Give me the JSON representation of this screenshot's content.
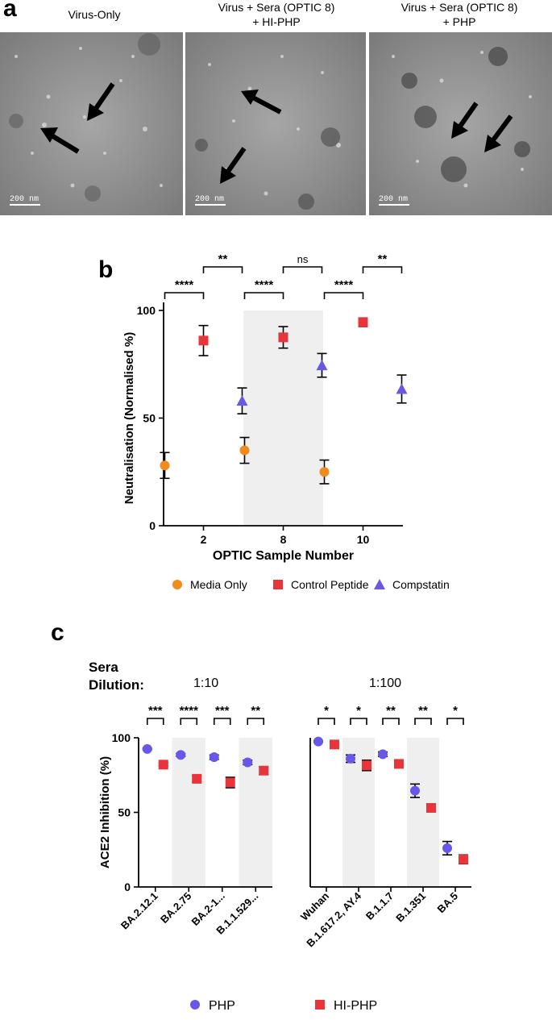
{
  "panel_a": {
    "letter": "a",
    "images": [
      {
        "title": "Virus-Only",
        "scale_label": "200 nm"
      },
      {
        "title": "Virus + Sera (OPTIC 8)\n+ HI-PHP",
        "scale_label": "200 nm"
      },
      {
        "title": "Virus + Sera (OPTIC 8)\n+ PHP",
        "scale_label": "200 nm"
      }
    ]
  },
  "panel_b": {
    "letter": "b"
  },
  "panel_c": {
    "letter": "c",
    "sera_label": "Sera\nDilution:",
    "group_labels": [
      "1:10",
      "1:100"
    ]
  },
  "chart_data": [
    {
      "type": "scatter",
      "id": "b",
      "title": "",
      "xlabel": "OPTIC Sample Number",
      "ylabel": "Neutralisation (Normalised %)",
      "ylim": [
        0,
        100
      ],
      "yticks": [
        0,
        50,
        100
      ],
      "categories": [
        "2",
        "8",
        "10"
      ],
      "shaded_categories": [
        "8"
      ],
      "series": [
        {
          "name": "Media Only",
          "color": "#f28a1c",
          "marker": "circle",
          "values": [
            28,
            35,
            25
          ],
          "errors": [
            6,
            6,
            5.5
          ]
        },
        {
          "name": "Control Peptide",
          "color": "#e8353b",
          "marker": "square",
          "values": [
            86,
            87.5,
            94.5
          ],
          "errors": [
            7,
            5,
            2
          ]
        },
        {
          "name": "Compstatin",
          "color": "#6957ea",
          "marker": "triangle",
          "values": [
            58,
            74.5,
            63.5
          ],
          "errors": [
            6,
            5.5,
            6.5
          ]
        }
      ],
      "significance": [
        {
          "category": "2",
          "pairs": [
            [
              "Media Only",
              "Control Peptide",
              "****"
            ],
            [
              "Control Peptide",
              "Compstatin",
              "**"
            ],
            [
              "Media Only",
              "Compstatin",
              "**"
            ]
          ]
        },
        {
          "category": "8",
          "pairs": [
            [
              "Media Only",
              "Control Peptide",
              "****"
            ],
            [
              "Control Peptide",
              "Compstatin",
              "ns"
            ],
            [
              "Media Only",
              "Compstatin",
              "****"
            ]
          ]
        },
        {
          "category": "10",
          "pairs": [
            [
              "Media Only",
              "Control Peptide",
              "****"
            ],
            [
              "Control Peptide",
              "Compstatin",
              "**"
            ],
            [
              "Media Only",
              "Compstatin",
              "****"
            ]
          ]
        }
      ],
      "legend_position": "bottom"
    },
    {
      "type": "scatter",
      "id": "c",
      "title": "",
      "xlabel": "",
      "ylabel": "ACE2 Inhibition (%)",
      "ylim": [
        0,
        100
      ],
      "yticks": [
        0,
        50,
        100
      ],
      "groups": [
        {
          "label": "1:10",
          "categories": [
            "BA.2.12.1",
            "BA.2.75",
            "BA.2-1...",
            "B.1.1.529..."
          ],
          "shaded": [
            false,
            true,
            false,
            true
          ],
          "significance": [
            "***",
            "****",
            "***",
            "**"
          ],
          "series": [
            {
              "name": "PHP",
              "values": [
                92.5,
                88.5,
                87,
                83.5
              ],
              "errors": [
                0.5,
                1,
                1.5,
                1.5
              ]
            },
            {
              "name": "HI-PHP",
              "values": [
                82,
                72.5,
                70,
                78
              ],
              "errors": [
                1,
                2,
                3.5,
                2.5
              ]
            }
          ]
        },
        {
          "label": "1:100",
          "categories": [
            "Wuhan",
            "B.1.617.2, AY.4",
            "B.1.1.7",
            "B.1.351",
            "BA.5"
          ],
          "shaded": [
            false,
            true,
            false,
            true,
            false
          ],
          "significance": [
            "*",
            "*",
            "**",
            "**",
            "*"
          ],
          "series": [
            {
              "name": "PHP",
              "values": [
                97.5,
                86,
                89,
                64.5,
                26
              ],
              "errors": [
                0.5,
                2.5,
                1.5,
                4.5,
                4.5
              ]
            },
            {
              "name": "HI-PHP",
              "values": [
                95.5,
                81.5,
                82.5,
                53,
                18.5
              ],
              "errors": [
                1,
                3.5,
                1,
                1,
                3
              ]
            }
          ]
        }
      ],
      "legend": [
        {
          "name": "PHP",
          "color": "#6957ea",
          "marker": "circle"
        },
        {
          "name": "HI-PHP",
          "color": "#e8353b",
          "marker": "square"
        }
      ],
      "legend_position": "bottom"
    }
  ]
}
